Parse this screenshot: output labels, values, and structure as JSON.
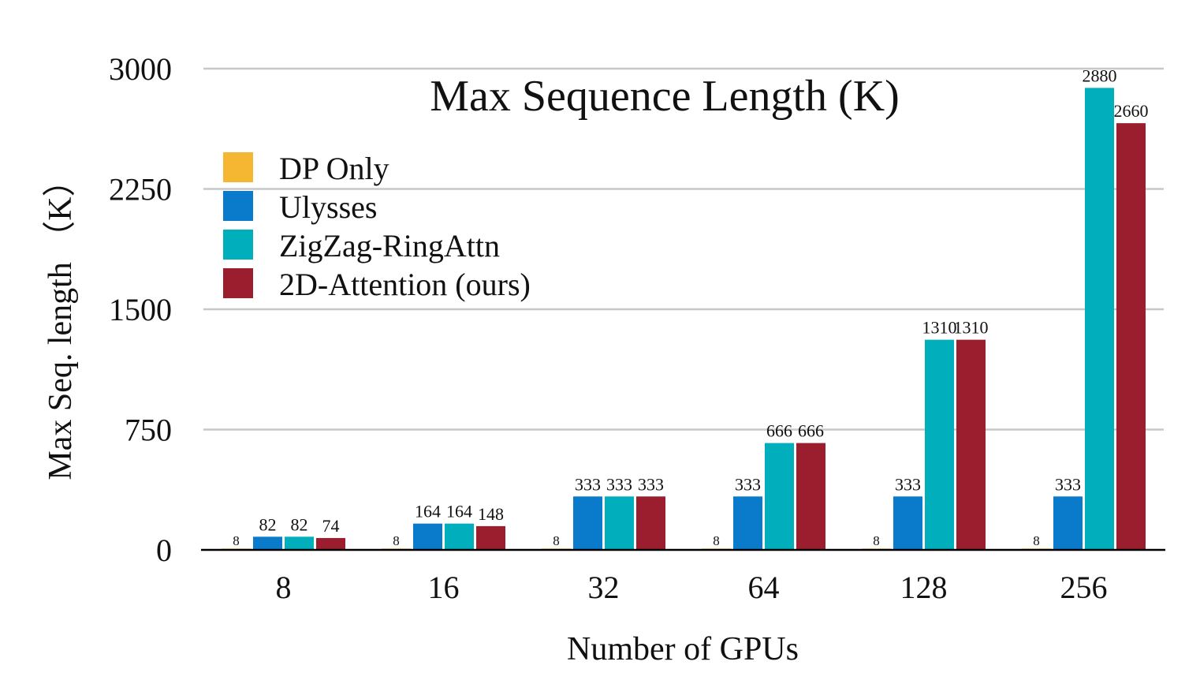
{
  "chart_data": {
    "type": "bar",
    "title": "Max Sequence Length (K)",
    "xlabel": "Number of GPUs",
    "ylabel": "Max Seq. length （K）",
    "categories": [
      "8",
      "16",
      "32",
      "64",
      "128",
      "256"
    ],
    "ylim": [
      0,
      3000
    ],
    "yticks": [
      0,
      750,
      1500,
      2250,
      3000
    ],
    "ytick_labels": [
      "0",
      "750",
      "1500",
      "2250",
      "3000"
    ],
    "grid": true,
    "legend_position": "top-left",
    "series": [
      {
        "name": "DP Only",
        "color": "#F5B731",
        "values": [
          8,
          8,
          8,
          8,
          8,
          8
        ],
        "labels": [
          "8",
          "8",
          "8",
          "8",
          "8",
          "8"
        ]
      },
      {
        "name": "Ulysses",
        "color": "#0A7BCB",
        "values": [
          82,
          164,
          333,
          333,
          333,
          333
        ],
        "labels": [
          "82",
          "164",
          "333",
          "333",
          "333",
          "333"
        ]
      },
      {
        "name": "ZigZag-RingAttn",
        "color": "#00AFBB",
        "values": [
          82,
          164,
          333,
          666,
          1310,
          2880
        ],
        "labels": [
          "82",
          "164",
          "333",
          "666",
          "1310",
          "2880"
        ]
      },
      {
        "name": "2D-Attention (ours)",
        "color": "#9B1E2F",
        "values": [
          74,
          148,
          333,
          666,
          1310,
          2660
        ],
        "labels": [
          "74",
          "148",
          "333",
          "666",
          "1310",
          "2660"
        ]
      }
    ]
  }
}
